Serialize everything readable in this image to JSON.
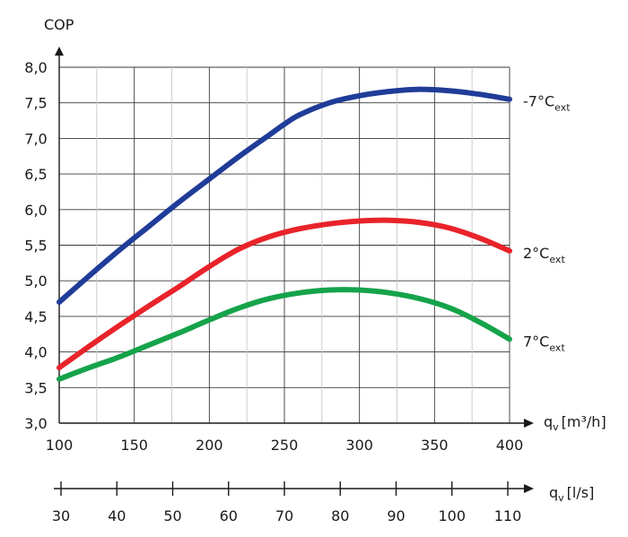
{
  "chart_data": {
    "type": "line",
    "ylabel": "COP",
    "xlabel_main": "q",
    "xlabel_main_sub": "v",
    "xlabel_main_unit": "[m³/h]",
    "xlabel_secondary": "q",
    "xlabel_secondary_sub": "v",
    "xlabel_secondary_unit": "[l/s]",
    "xlim": [
      100,
      400
    ],
    "ylim": [
      3.0,
      8.0
    ],
    "x_ticks": [
      100,
      150,
      200,
      250,
      300,
      350,
      400
    ],
    "x_tick_labels": [
      "100",
      "150",
      "200",
      "250",
      "300",
      "350",
      "400"
    ],
    "y_ticks": [
      3.0,
      3.5,
      4.0,
      4.5,
      5.0,
      5.5,
      6.0,
      6.5,
      7.0,
      7.5,
      8.0
    ],
    "y_tick_labels": [
      "3,0",
      "3,5",
      "4,0",
      "4,5",
      "5,0",
      "5,5",
      "6,0",
      "6,5",
      "7,0",
      "7,5",
      "8,0"
    ],
    "secondary_ticks": [
      30,
      40,
      50,
      60,
      70,
      80,
      90,
      100,
      110
    ],
    "secondary_tick_labels": [
      "30",
      "40",
      "50",
      "60",
      "70",
      "80",
      "90",
      "100",
      "110"
    ],
    "grid": true,
    "series": [
      {
        "name": "-7°C ext",
        "label_main": "-7°C",
        "label_sub": "ext",
        "color": "#1f3c98",
        "x": [
          100,
          120,
          140,
          160,
          180,
          200,
          220,
          240,
          250,
          260,
          280,
          300,
          320,
          340,
          360,
          380,
          400
        ],
        "y": [
          4.7,
          5.07,
          5.43,
          5.77,
          6.11,
          6.43,
          6.75,
          7.05,
          7.2,
          7.33,
          7.5,
          7.6,
          7.66,
          7.69,
          7.67,
          7.62,
          7.55
        ]
      },
      {
        "name": "2°C ext",
        "label_main": "2°C",
        "label_sub": "ext",
        "color": "#e8232a",
        "x": [
          100,
          120,
          140,
          160,
          180,
          200,
          220,
          240,
          260,
          280,
          300,
          320,
          340,
          360,
          380,
          400
        ],
        "y": [
          3.78,
          4.08,
          4.37,
          4.65,
          4.92,
          5.2,
          5.45,
          5.62,
          5.73,
          5.8,
          5.84,
          5.85,
          5.82,
          5.74,
          5.6,
          5.42
        ]
      },
      {
        "name": "7°C ext",
        "label_main": "7°C",
        "label_sub": "ext",
        "color": "#15a34a",
        "x": [
          100,
          120,
          140,
          160,
          180,
          200,
          220,
          240,
          260,
          280,
          300,
          320,
          340,
          360,
          380,
          400
        ],
        "y": [
          3.62,
          3.78,
          3.93,
          4.1,
          4.27,
          4.45,
          4.62,
          4.75,
          4.83,
          4.87,
          4.87,
          4.83,
          4.75,
          4.62,
          4.42,
          4.18
        ]
      }
    ]
  }
}
